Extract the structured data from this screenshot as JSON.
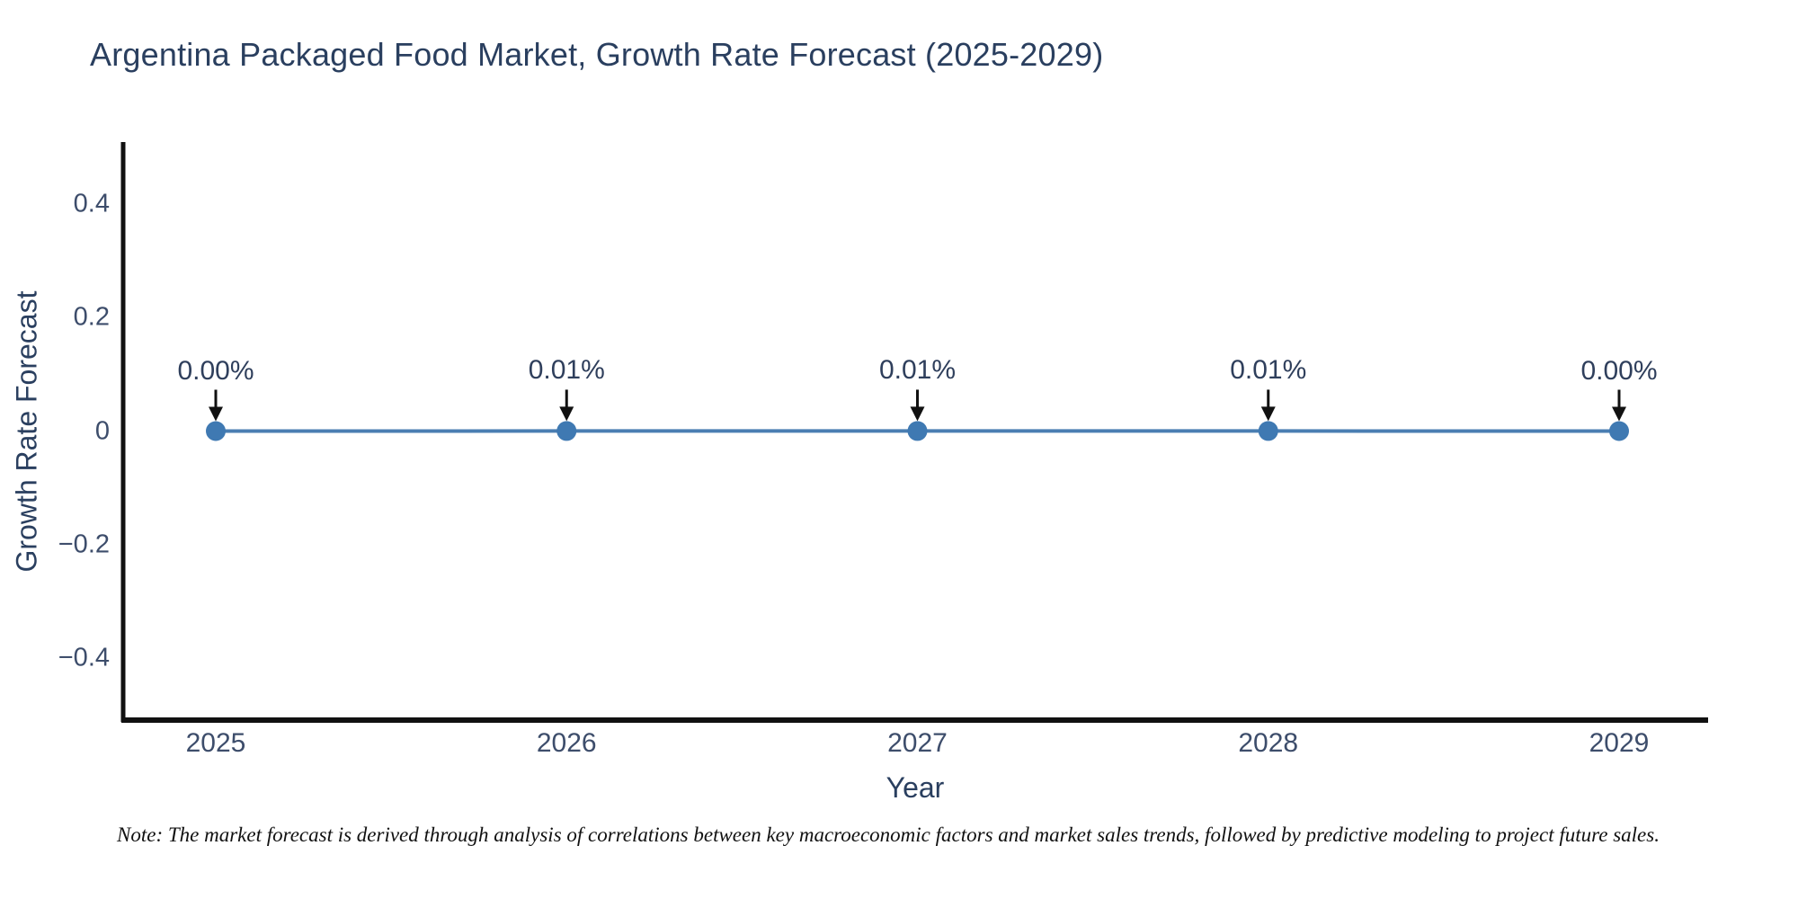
{
  "title": "Argentina Packaged Food Market, Growth Rate Forecast (2025-2029)",
  "note": "Note: The market forecast is derived through analysis of correlations between key macroeconomic factors and market sales trends, followed by predictive modeling to project future sales.",
  "chart_data": {
    "type": "line",
    "title": "Argentina Packaged Food Market, Growth Rate Forecast (2025-2029)",
    "xlabel": "Year",
    "ylabel": "Growth Rate Forecast",
    "categories": [
      "2025",
      "2026",
      "2027",
      "2028",
      "2029"
    ],
    "series": [
      {
        "name": "Growth Rate Forecast",
        "values": [
          0.0,
          0.0001,
          0.0001,
          0.0001,
          0.0
        ]
      }
    ],
    "point_labels": [
      "0.00%",
      "0.01%",
      "0.01%",
      "0.01%",
      "0.00%"
    ],
    "ylim": [
      -0.51,
      0.51
    ],
    "yticks": [
      0.4,
      0.2,
      0,
      -0.2,
      -0.4
    ],
    "ytick_labels": [
      "0.4",
      "0.2",
      "0",
      "−0.2",
      "−0.4"
    ],
    "grid": false,
    "legend_position": "none",
    "annotation_arrows": "down",
    "colors": {
      "line": "#4a7eb2",
      "marker": "#3f79b2",
      "axis": "#111111",
      "title_text": "#2a3f5f",
      "tick_text": "#3d4d6b",
      "arrow": "#111111"
    }
  }
}
